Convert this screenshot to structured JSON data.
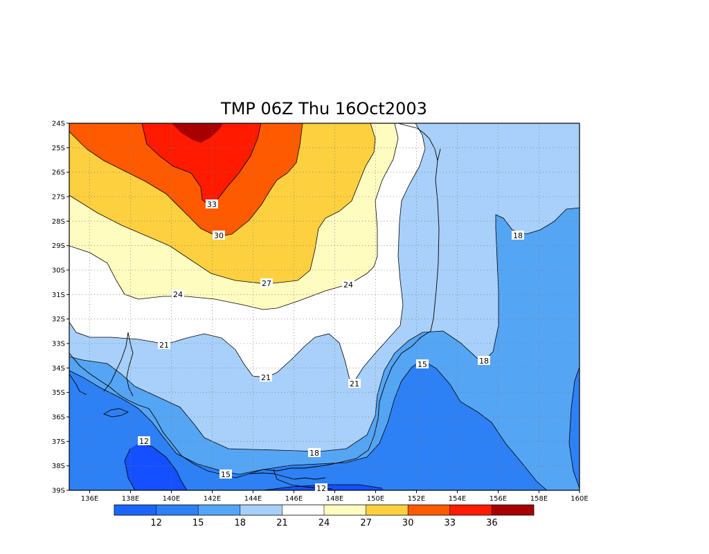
{
  "title": "TMP 06Z Thu 16Oct2003",
  "lat_labels": [
    "24S",
    "25S",
    "26S",
    "27S",
    "28S",
    "29S",
    "30S",
    "31S",
    "32S",
    "33S",
    "34S",
    "35S",
    "36S",
    "37S",
    "38S",
    "39S"
  ],
  "lon_labels": [
    "136E",
    "138E",
    "140E",
    "142E",
    "144E",
    "146E",
    "148E",
    "150E",
    "152E",
    "154E",
    "156E",
    "158E",
    "160E"
  ],
  "contour_labels": [
    {
      "text": "33"
    },
    {
      "text": "30"
    },
    {
      "text": "27"
    },
    {
      "text": "24"
    },
    {
      "text": "24"
    },
    {
      "text": "21"
    },
    {
      "text": "21"
    },
    {
      "text": "21"
    },
    {
      "text": "18"
    },
    {
      "text": "18"
    },
    {
      "text": "18"
    },
    {
      "text": "15"
    },
    {
      "text": "15"
    },
    {
      "text": "12"
    },
    {
      "text": "12"
    }
  ],
  "colorbar": {
    "colors": [
      "#1a66ff",
      "#2e80f5",
      "#55a5f5",
      "#a8d0fa",
      "#ffffff",
      "#fffcc0",
      "#fdd040",
      "#ff5a00",
      "#ff1a00",
      "#a80000"
    ],
    "labels": [
      "12",
      "15",
      "18",
      "21",
      "24",
      "27",
      "30",
      "33",
      "36"
    ]
  }
}
